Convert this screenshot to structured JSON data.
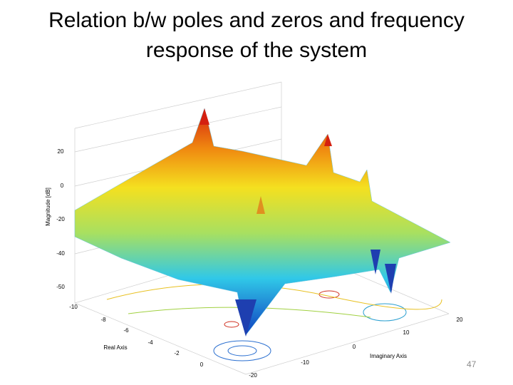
{
  "title": {
    "line1": "Relation b/w poles and zeros and frequency",
    "line2": "response of the system"
  },
  "figure": {
    "z_label": "Magnitude [dB]",
    "x_label": "Real Axis",
    "y_label": "Imaginary Axis",
    "z_ticks": [
      20,
      0,
      -20,
      -40,
      -50
    ],
    "x_ticks": [
      -10,
      -8,
      -6,
      -4,
      -2,
      0
    ],
    "y_ticks": [
      -20,
      -10,
      0,
      10,
      20
    ]
  },
  "page_number": "47"
}
